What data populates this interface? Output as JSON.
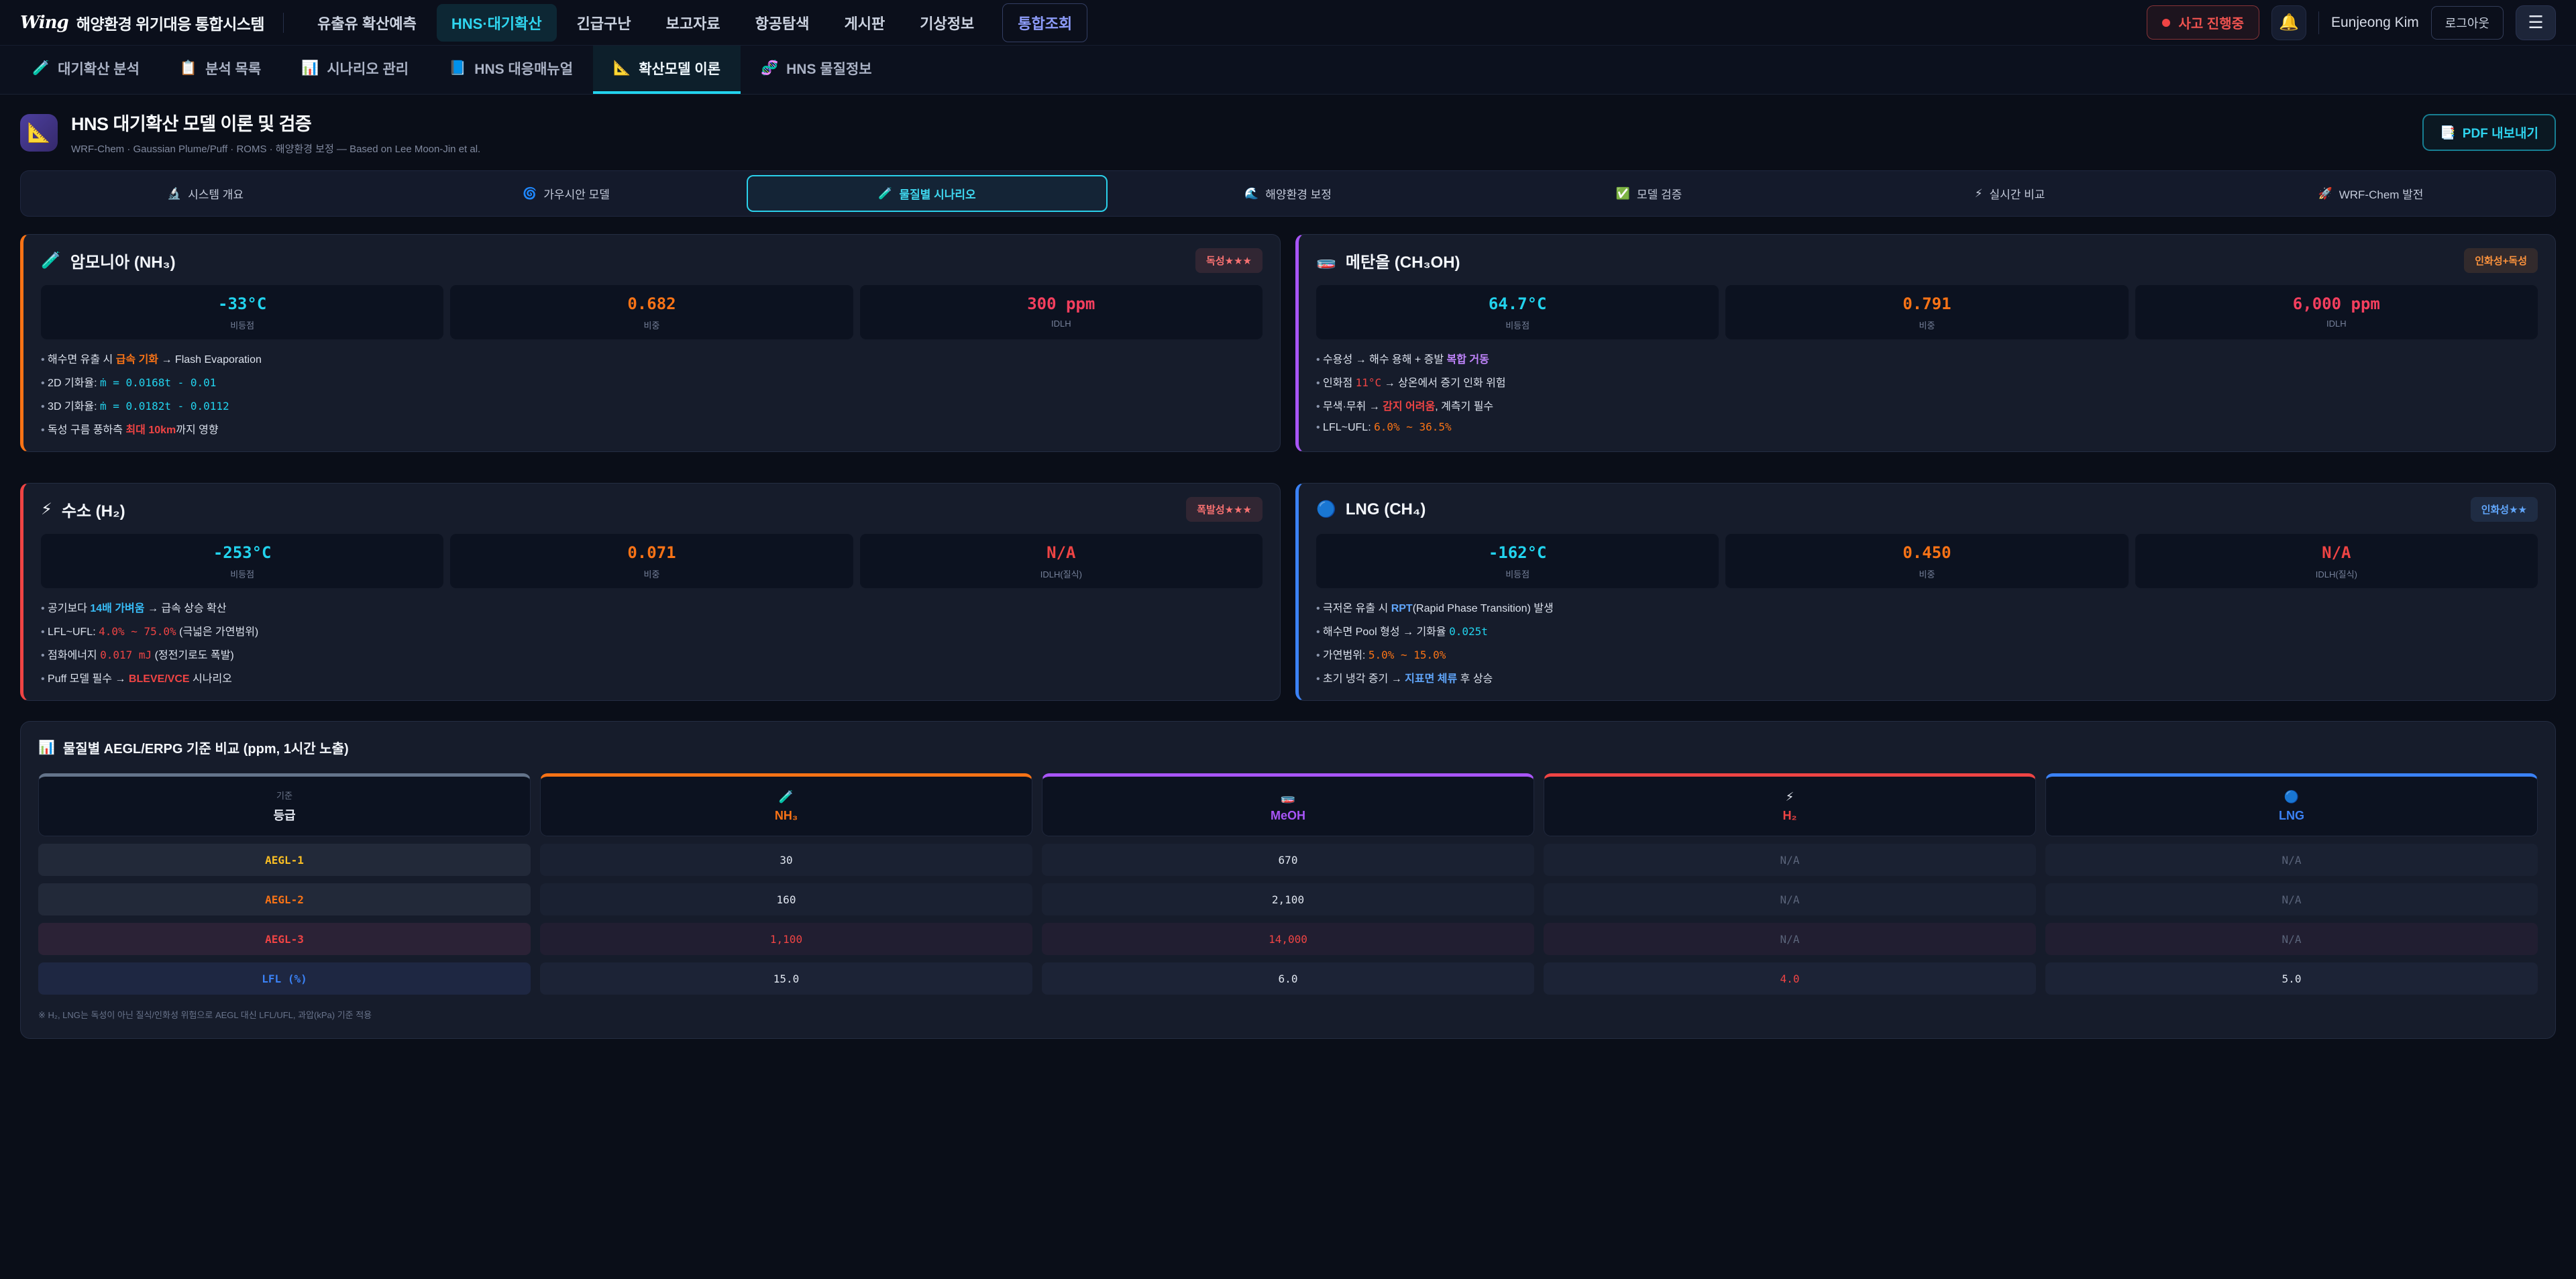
{
  "theme": {
    "background": "#0a0e18",
    "accent_cyan": "#22d3ee"
  },
  "topnav": {
    "logo_mark": "Wing",
    "logo_text": "해양환경 위기대응 통합시스템",
    "items": [
      {
        "id": "oil-spill",
        "label": "유출유 확산예측"
      },
      {
        "id": "hns-diffusion",
        "label": "HNS·대기확산",
        "active": true
      },
      {
        "id": "emergency-rescue",
        "label": "긴급구난"
      },
      {
        "id": "reports",
        "label": "보고자료"
      },
      {
        "id": "aerial-search",
        "label": "항공탐색"
      },
      {
        "id": "board",
        "label": "게시판"
      },
      {
        "id": "weather",
        "label": "기상정보"
      },
      {
        "id": "integrated-search",
        "label": "통합조회",
        "special": true
      }
    ],
    "incident": "사고 진행중",
    "bell_icon": "🔔",
    "user": "Eunjeong Kim",
    "logout": "로그아웃",
    "menu_icon": "☰"
  },
  "tabs": [
    {
      "id": "diffusion-analysis",
      "icon": "🧪",
      "label": "대기확산 분석"
    },
    {
      "id": "analysis-list",
      "icon": "📋",
      "label": "분석 목록"
    },
    {
      "id": "scenario-management",
      "icon": "📊",
      "label": "시나리오 관리"
    },
    {
      "id": "hns-manual",
      "icon": "📘",
      "label": "HNS 대응매뉴얼"
    },
    {
      "id": "model-theory",
      "icon": "📐",
      "label": "확산모델 이론",
      "active": true
    },
    {
      "id": "hns-materials",
      "icon": "🧬",
      "label": "HNS 물질정보"
    }
  ],
  "header": {
    "icon": "📐",
    "title": "HNS 대기확산 모델 이론 및 검증",
    "subtitle": "WRF-Chem · Gaussian Plume/Puff · ROMS · 해양환경 보정 — Based on Lee Moon-Jin et al.",
    "pdf_icon": "📑",
    "pdf_button": "PDF 내보내기"
  },
  "subtabs": [
    {
      "id": "system-overview",
      "icon": "🔬",
      "label": "시스템 개요"
    },
    {
      "id": "gaussian-model",
      "icon": "🌀",
      "label": "가우시안 모델"
    },
    {
      "id": "substance-scenarios",
      "icon": "🧪",
      "label": "물질별 시나리오",
      "active": true
    },
    {
      "id": "marine-correction",
      "icon": "🌊",
      "label": "해양환경 보정"
    },
    {
      "id": "model-validation",
      "icon": "✅",
      "label": "모델 검증"
    },
    {
      "id": "realtime-comparison",
      "icon": "⚡",
      "label": "실시간 비교"
    },
    {
      "id": "wrf-chem",
      "icon": "🚀",
      "label": "WRF-Chem 발전"
    }
  ],
  "cards": [
    {
      "id": "nh3",
      "accent": "#f97316",
      "icon": "🧪",
      "title": "암모니아 (NH₃)",
      "badge": {
        "text": "독성★★★",
        "color": "#f87171",
        "bg": "rgba(248,113,113,0.12)"
      },
      "stats": [
        {
          "value": "-33°C",
          "color": "#22d3ee",
          "label": "비등점"
        },
        {
          "value": "0.682",
          "color": "#f97316",
          "label": "비중"
        },
        {
          "value": "300 ppm",
          "color": "#f43f5e",
          "label": "IDLH"
        }
      ],
      "bullets": [
        [
          {
            "t": "해수면 유출 시 "
          },
          {
            "t": "급속 기화",
            "c": "hl-orange"
          },
          {
            "t": " → Flash Evaporation"
          }
        ],
        [
          {
            "t": "2D 기화율: "
          },
          {
            "t": "ṁ = 0.0168t - 0.01",
            "c": "code-cyan"
          }
        ],
        [
          {
            "t": "3D 기화율: "
          },
          {
            "t": "ṁ = 0.0182t - 0.0112",
            "c": "code-cyan"
          }
        ],
        [
          {
            "t": "독성 구름 풍하측 "
          },
          {
            "t": "최대 10km",
            "c": "hl-red"
          },
          {
            "t": "까지 영향"
          }
        ]
      ]
    },
    {
      "id": "meoh",
      "accent": "#a855f7",
      "icon": "🧫",
      "title": "메탄올 (CH₃OH)",
      "badge": {
        "text": "인화성+독성",
        "color": "#fb923c",
        "bg": "rgba(251,146,60,0.12)"
      },
      "stats": [
        {
          "value": "64.7°C",
          "color": "#22d3ee",
          "label": "비등점"
        },
        {
          "value": "0.791",
          "color": "#f97316",
          "label": "비중"
        },
        {
          "value": "6,000 ppm",
          "color": "#f43f5e",
          "label": "IDLH"
        }
      ],
      "bullets": [
        [
          {
            "t": "수용성 → 해수 용해 + 증발 "
          },
          {
            "t": "복합 거동",
            "c": "hl-purple"
          }
        ],
        [
          {
            "t": "인화점 "
          },
          {
            "t": "11°C",
            "c": "code-red"
          },
          {
            "t": " → 상온에서 증기 인화 위험"
          }
        ],
        [
          {
            "t": "무색·무취 → "
          },
          {
            "t": "감지 어려움",
            "c": "hl-red"
          },
          {
            "t": ", 계측기 필수"
          }
        ],
        [
          {
            "t": "LFL~UFL: "
          },
          {
            "t": "6.0% ~ 36.5%",
            "c": "code-orange"
          }
        ]
      ]
    },
    {
      "id": "h2",
      "accent": "#ef4444",
      "icon": "⚡",
      "title": "수소 (H₂)",
      "badge": {
        "text": "폭발성★★★",
        "color": "#f87171",
        "bg": "rgba(248,113,113,0.12)"
      },
      "stats": [
        {
          "value": "-253°C",
          "color": "#22d3ee",
          "label": "비등점"
        },
        {
          "value": "0.071",
          "color": "#f97316",
          "label": "비중"
        },
        {
          "value": "N/A",
          "color": "#ef4444",
          "label": "IDLH(질식)"
        }
      ],
      "bullets": [
        [
          {
            "t": "공기보다 "
          },
          {
            "t": "14배 가벼움",
            "c": "hl-cyan"
          },
          {
            "t": " → 급속 상승 확산"
          }
        ],
        [
          {
            "t": "LFL~UFL: "
          },
          {
            "t": "4.0% ~ 75.0%",
            "c": "code-red"
          },
          {
            "t": " (극넓은 가연범위)"
          }
        ],
        [
          {
            "t": "점화에너지 "
          },
          {
            "t": "0.017 mJ",
            "c": "code-red"
          },
          {
            "t": " (정전기로도 폭발)"
          }
        ],
        [
          {
            "t": "Puff 모델 필수 → "
          },
          {
            "t": "BLEVE/VCE",
            "c": "hl-red"
          },
          {
            "t": " 시나리오"
          }
        ]
      ]
    },
    {
      "id": "lng",
      "accent": "#3b82f6",
      "icon": "🔵",
      "title": "LNG (CH₄)",
      "badge": {
        "text": "인화성★★",
        "color": "#60a5fa",
        "bg": "rgba(96,165,250,0.12)"
      },
      "stats": [
        {
          "value": "-162°C",
          "color": "#22d3ee",
          "label": "비등점"
        },
        {
          "value": "0.450",
          "color": "#f97316",
          "label": "비중"
        },
        {
          "value": "N/A",
          "color": "#ef4444",
          "label": "IDLH(질식)"
        }
      ],
      "bullets": [
        [
          {
            "t": "극저온 유출 시 "
          },
          {
            "t": "RPT",
            "c": "hl-blue"
          },
          {
            "t": "(Rapid Phase Transition) 발생"
          }
        ],
        [
          {
            "t": "해수면 Pool 형성 → 기화율 "
          },
          {
            "t": "0.025t",
            "c": "code-cyan"
          }
        ],
        [
          {
            "t": "가연범위: "
          },
          {
            "t": "5.0% ~ 15.0%",
            "c": "code-orange"
          }
        ],
        [
          {
            "t": "초기 냉각 증기 → "
          },
          {
            "t": "지표면 체류",
            "c": "hl-blue"
          },
          {
            "t": " 후 상승"
          }
        ]
      ]
    }
  ],
  "comparison": {
    "title_icon": "📊",
    "title": "물질별 AEGL/ERPG 기준 비교 (ppm, 1시간 노출)",
    "columns": [
      {
        "id": "grade",
        "top": "기준",
        "name": "등급",
        "accent": "#64748b",
        "name_color": "#e5e9f2"
      },
      {
        "id": "nh3",
        "icon": "🧪",
        "name": "NH₃",
        "accent": "#f97316",
        "name_color": "#f97316"
      },
      {
        "id": "meoh",
        "icon": "🧫",
        "name": "MeOH",
        "accent": "#a855f7",
        "name_color": "#a855f7"
      },
      {
        "id": "h2",
        "icon": "⚡",
        "name": "H₂",
        "accent": "#ef4444",
        "name_color": "#ef4444"
      },
      {
        "id": "lng",
        "icon": "🔵",
        "name": "LNG",
        "accent": "#3b82f6",
        "name_color": "#3b82f6"
      }
    ],
    "rows": [
      {
        "id": "aegl-1",
        "label": "AEGL-1",
        "label_color": "#fbbf24",
        "tint": "",
        "values": [
          {
            "v": "30"
          },
          {
            "v": "670"
          },
          {
            "v": "N/A",
            "dim": true
          },
          {
            "v": "N/A",
            "dim": true
          }
        ]
      },
      {
        "id": "aegl-2",
        "label": "AEGL-2",
        "label_color": "#f97316",
        "tint": "",
        "values": [
          {
            "v": "160"
          },
          {
            "v": "2,100"
          },
          {
            "v": "N/A",
            "dim": true
          },
          {
            "v": "N/A",
            "dim": true
          }
        ]
      },
      {
        "id": "aegl-3",
        "label": "AEGL-3",
        "label_color": "#ef4444",
        "tint": "tint-red",
        "values": [
          {
            "v": "1,100",
            "color": "#ef4444"
          },
          {
            "v": "14,000",
            "color": "#ef4444"
          },
          {
            "v": "N/A",
            "dim": true
          },
          {
            "v": "N/A",
            "dim": true
          }
        ]
      },
      {
        "id": "lfl",
        "label": "LFL (%)",
        "label_color": "#3b82f6",
        "tint": "tint-blue",
        "values": [
          {
            "v": "15.0"
          },
          {
            "v": "6.0"
          },
          {
            "v": "4.0",
            "color": "#ef4444"
          },
          {
            "v": "5.0"
          }
        ]
      }
    ],
    "footnote": "※ H₂, LNG는 독성이 아닌 질식/인화성 위험으로 AEGL 대신 LFL/UFL, 과압(kPa) 기준 적용"
  }
}
